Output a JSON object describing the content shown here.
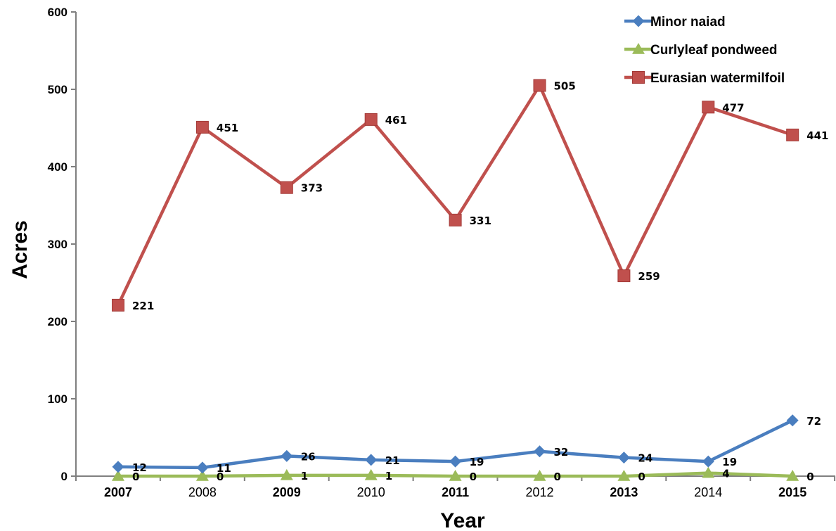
{
  "chart_data": {
    "type": "line",
    "xlabel": "Year",
    "ylabel": "Acres",
    "ylim": [
      0,
      600
    ],
    "yticks": [
      0,
      100,
      200,
      300,
      400,
      500,
      600
    ],
    "categories": [
      "2007",
      "2008",
      "2009",
      "2010",
      "2011",
      "2012",
      "2013",
      "2014",
      "2015"
    ],
    "bold_categories": [
      "2007",
      "2009",
      "2011",
      "2013",
      "2015"
    ],
    "grid": false,
    "legend_position": "top-right",
    "series": [
      {
        "name": "Minor naiad",
        "color": "#4a7ebf",
        "marker": "diamond",
        "values": [
          12,
          11,
          26,
          21,
          19,
          32,
          24,
          19,
          72
        ]
      },
      {
        "name": "Curlyleaf pondweed",
        "color": "#9bbb59",
        "marker": "triangle",
        "values": [
          0,
          0,
          1,
          1,
          0,
          0,
          0,
          4,
          0
        ]
      },
      {
        "name": "Eurasian watermilfoil",
        "color": "#c0504d",
        "marker": "square",
        "values": [
          221,
          451,
          373,
          461,
          331,
          505,
          259,
          477,
          441
        ]
      }
    ],
    "data_labels": [
      [
        "12",
        "11",
        "26",
        "21",
        "19",
        "32",
        "24",
        "19",
        "72"
      ],
      [
        "0",
        "0",
        "1",
        "1",
        "0",
        "0",
        "0",
        "4",
        "0"
      ],
      [
        "221",
        "451",
        "373",
        "461",
        "331",
        "505",
        "259",
        "477",
        "441"
      ]
    ]
  }
}
